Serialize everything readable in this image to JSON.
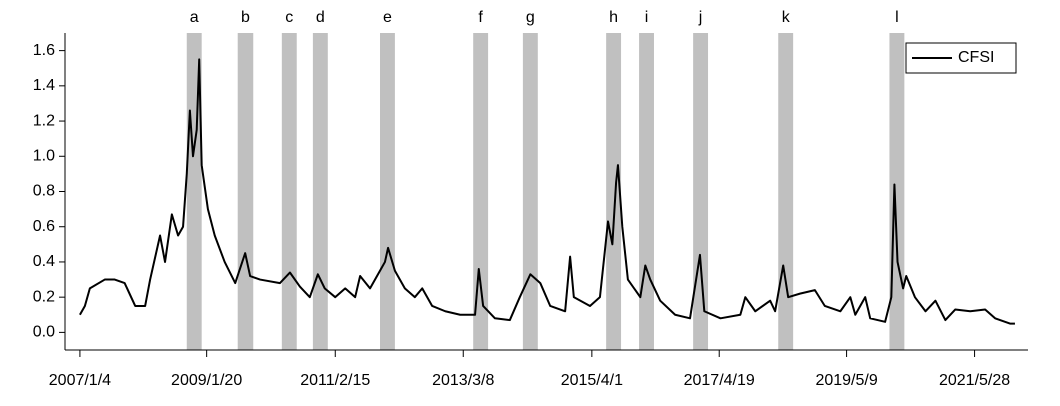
{
  "chart_data": {
    "type": "line",
    "x": [
      2007.01,
      2007.09,
      2007.17,
      2007.41,
      2007.57,
      2007.73,
      2007.9,
      2008.06,
      2008.14,
      2008.3,
      2008.38,
      2008.49,
      2008.59,
      2008.67,
      2008.73,
      2008.78,
      2008.83,
      2008.89,
      2008.93,
      2008.97,
      2009.07,
      2009.18,
      2009.34,
      2009.51,
      2009.67,
      2009.75,
      2009.91,
      2010.23,
      2010.39,
      2010.55,
      2010.71,
      2010.84,
      2010.95,
      2011.12,
      2011.28,
      2011.44,
      2011.52,
      2011.68,
      2011.92,
      2011.97,
      2012.08,
      2012.24,
      2012.4,
      2012.52,
      2012.68,
      2012.89,
      2013.13,
      2013.37,
      2013.43,
      2013.5,
      2013.69,
      2013.93,
      2014.09,
      2014.26,
      2014.42,
      2014.58,
      2014.82,
      2014.9,
      2014.96,
      2015.22,
      2015.38,
      2015.51,
      2015.58,
      2015.64,
      2015.67,
      2015.74,
      2015.83,
      2016.03,
      2016.11,
      2016.19,
      2016.35,
      2016.59,
      2016.83,
      2016.99,
      2017.06,
      2017.32,
      2017.64,
      2017.72,
      2017.88,
      2018.12,
      2018.2,
      2018.33,
      2018.41,
      2018.6,
      2018.84,
      2019.0,
      2019.25,
      2019.41,
      2019.49,
      2019.65,
      2019.73,
      2019.97,
      2020.07,
      2020.12,
      2020.17,
      2020.26,
      2020.31,
      2020.45,
      2020.62,
      2020.78,
      2020.94,
      2021.1,
      2021.34,
      2021.58,
      2021.74,
      2021.98,
      2022.06
    ],
    "series": [
      {
        "name": "CFSI",
        "color": "#000000",
        "values": [
          0.1,
          0.15,
          0.25,
          0.3,
          0.3,
          0.28,
          0.15,
          0.15,
          0.3,
          0.55,
          0.4,
          0.67,
          0.55,
          0.6,
          0.9,
          1.26,
          1.0,
          1.15,
          1.55,
          0.95,
          0.7,
          0.55,
          0.4,
          0.28,
          0.45,
          0.32,
          0.3,
          0.28,
          0.34,
          0.26,
          0.2,
          0.33,
          0.25,
          0.2,
          0.25,
          0.2,
          0.32,
          0.25,
          0.4,
          0.48,
          0.35,
          0.25,
          0.2,
          0.25,
          0.15,
          0.12,
          0.1,
          0.1,
          0.36,
          0.15,
          0.08,
          0.07,
          0.2,
          0.33,
          0.28,
          0.15,
          0.12,
          0.43,
          0.2,
          0.15,
          0.2,
          0.63,
          0.5,
          0.85,
          0.95,
          0.6,
          0.3,
          0.2,
          0.38,
          0.3,
          0.18,
          0.1,
          0.08,
          0.44,
          0.12,
          0.08,
          0.1,
          0.2,
          0.12,
          0.18,
          0.12,
          0.38,
          0.2,
          0.22,
          0.24,
          0.15,
          0.12,
          0.2,
          0.1,
          0.2,
          0.08,
          0.06,
          0.2,
          0.84,
          0.4,
          0.25,
          0.32,
          0.2,
          0.12,
          0.18,
          0.07,
          0.13,
          0.12,
          0.13,
          0.08,
          0.05,
          0.05
        ]
      }
    ],
    "bands": [
      {
        "label": "a",
        "start": 2008.73,
        "end": 2008.97
      },
      {
        "label": "b",
        "start": 2009.55,
        "end": 2009.8
      },
      {
        "label": "c",
        "start": 2010.26,
        "end": 2010.5
      },
      {
        "label": "d",
        "start": 2010.76,
        "end": 2011.0
      },
      {
        "label": "e",
        "start": 2011.84,
        "end": 2012.08
      },
      {
        "label": "f",
        "start": 2013.34,
        "end": 2013.58
      },
      {
        "label": "g",
        "start": 2014.14,
        "end": 2014.38
      },
      {
        "label": "h",
        "start": 2015.48,
        "end": 2015.72
      },
      {
        "label": "i",
        "start": 2016.01,
        "end": 2016.25
      },
      {
        "label": "j",
        "start": 2016.88,
        "end": 2017.12
      },
      {
        "label": "k",
        "start": 2018.25,
        "end": 2018.49
      },
      {
        "label": "l",
        "start": 2020.04,
        "end": 2020.28
      }
    ],
    "band_color": "#c0c0c0",
    "xlim": [
      2006.77,
      2022.27
    ],
    "xticks": [
      {
        "value": 2007.01,
        "label": "2007/1/4"
      },
      {
        "value": 2009.05,
        "label": "2009/1/20"
      },
      {
        "value": 2011.12,
        "label": "2011/2/15"
      },
      {
        "value": 2013.18,
        "label": "2013/3/8"
      },
      {
        "value": 2015.25,
        "label": "2015/4/1"
      },
      {
        "value": 2017.3,
        "label": "2017/4/19"
      },
      {
        "value": 2019.35,
        "label": "2019/5/9"
      },
      {
        "value": 2021.41,
        "label": "2021/5/28"
      }
    ],
    "ylim": [
      -0.1,
      1.7
    ],
    "yticks": [
      {
        "value": 0,
        "label": "0.0"
      },
      0.2,
      0.4,
      0.6,
      0.8,
      {
        "value": 1,
        "label": "1.0"
      },
      1.2,
      1.4,
      1.6
    ],
    "legend": "upper right"
  }
}
